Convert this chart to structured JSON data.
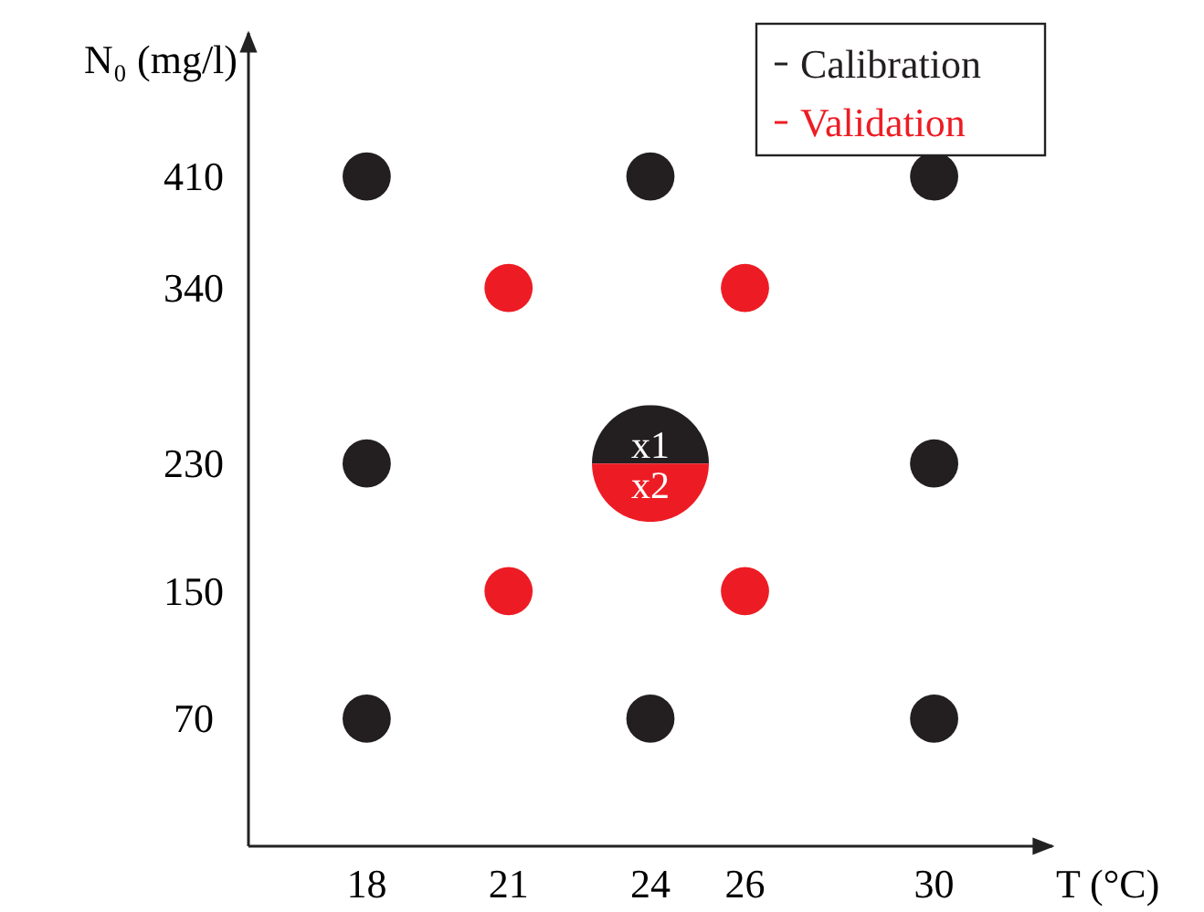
{
  "chart_data": {
    "type": "scatter",
    "xlabel": "T (°C)",
    "ylabel": "N₀ (mg/l)",
    "xlim": [
      15.5,
      32.5
    ],
    "ylim": [
      -10,
      500
    ],
    "xticks": [
      18,
      21,
      24,
      26,
      30
    ],
    "yticks": [
      70,
      150,
      230,
      340,
      410
    ],
    "marker": "circle",
    "legend": "top right",
    "grid": false,
    "series": [
      {
        "name": "Calibration",
        "color": "#231f20",
        "x": [
          18,
          24,
          30,
          18,
          24,
          30,
          18,
          24,
          30
        ],
        "values": [
          410,
          410,
          410,
          230,
          230,
          230,
          70,
          70,
          70
        ],
        "sizes": [
          0.17,
          0.17,
          0.17,
          0.17,
          1,
          0.17,
          0.17,
          0.17,
          0.17
        ]
      },
      {
        "name": "Validation",
        "color": "#ed1c24",
        "x": [
          21,
          26,
          24,
          21,
          26
        ],
        "values": [
          340,
          340,
          230,
          150,
          150
        ],
        "sizes": [
          0.17,
          0.17,
          1,
          0.17,
          0.17
        ]
      }
    ],
    "annotations": [
      {
        "text": "x1",
        "x": 24,
        "y": 230
      },
      {
        "text": "x2",
        "x": 24,
        "y": 230
      }
    ]
  }
}
